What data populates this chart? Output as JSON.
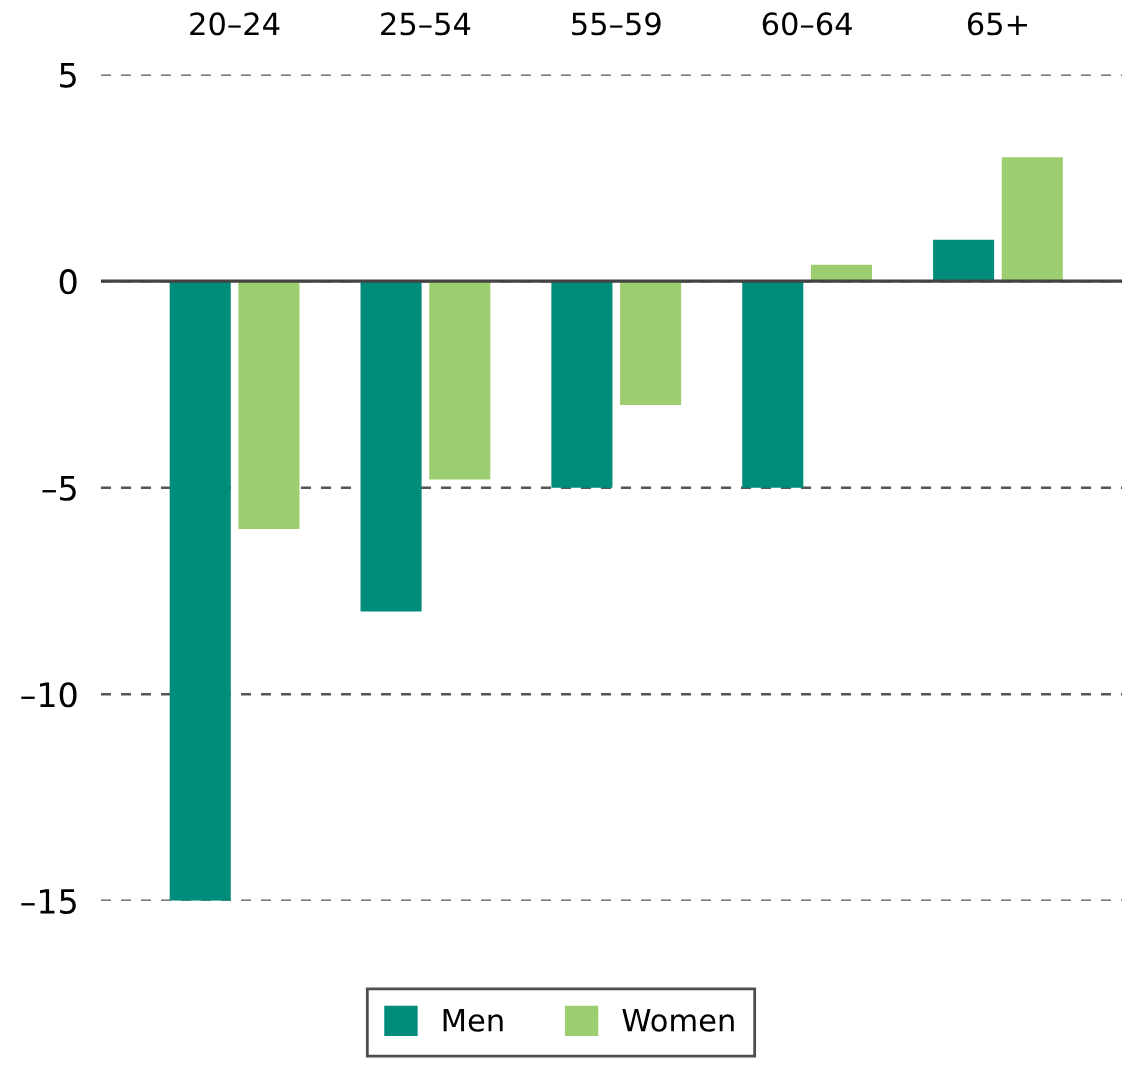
{
  "chart_data": {
    "type": "bar",
    "categories": [
      "20–24",
      "25–54",
      "55–59",
      "60–64",
      "65+"
    ],
    "series": [
      {
        "name": "Men",
        "color": "#008c7a",
        "values": [
          -15,
          -8,
          -5,
          -5,
          1
        ]
      },
      {
        "name": "Women",
        "color": "#9ccd6e",
        "values": [
          -6,
          -4.8,
          -3,
          0.4,
          3
        ]
      }
    ],
    "ylim": [
      -15,
      5
    ],
    "yticks": [
      {
        "value": -15,
        "label": "–15"
      },
      {
        "value": -10,
        "label": "–10"
      },
      {
        "value": -5,
        "label": "–5"
      },
      0,
      5
    ],
    "grid": "y",
    "legend": "bottom"
  }
}
